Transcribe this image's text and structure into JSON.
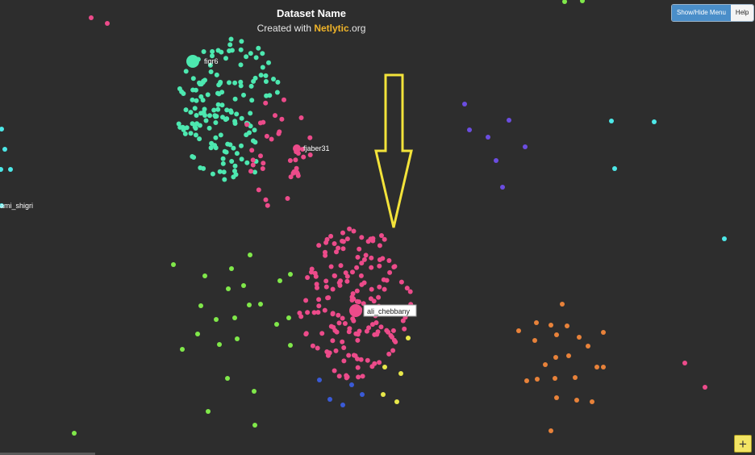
{
  "header": {
    "title": "Dataset Name",
    "subtitle_prefix": "Created with ",
    "brand": "Netlytic",
    "brand_suffix": ".org"
  },
  "toolbar": {
    "menu_label": "Show/Hide Menu",
    "help_label": "Help"
  },
  "add_button_label": "+",
  "colors": {
    "background": "#2d2d2d",
    "teal": "#4de8b0",
    "pink": "#ec4b8a",
    "green": "#80e84a",
    "purple": "#6b4de0",
    "orange": "#e8823a",
    "cyan": "#4de8e8",
    "yellow": "#e8e84a",
    "blue": "#3a5ad6",
    "arrow": "#f3e33a"
  },
  "labels": {
    "figr": "figr6",
    "fjaber": "fjaber31",
    "ali": "ali_chebbany",
    "ami": "ami_shigri"
  }
}
